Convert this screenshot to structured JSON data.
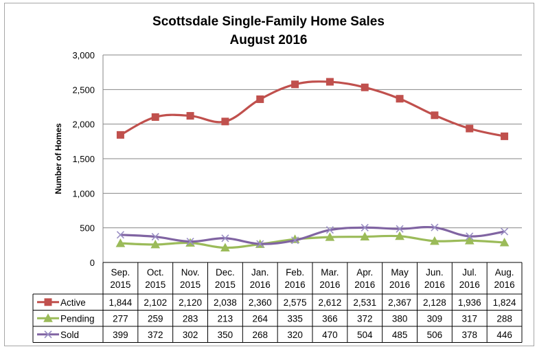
{
  "chart_data": {
    "type": "line",
    "title": [
      "Scottsdale Single-Family Home Sales",
      "August 2016"
    ],
    "ylabel": "Number of Homes",
    "xlabel": "",
    "ylim": [
      0,
      3000
    ],
    "yticks": [
      0,
      500,
      1000,
      1500,
      2000,
      2500,
      3000
    ],
    "ytick_labels": [
      "0",
      "500",
      "1,000",
      "1,500",
      "2,000",
      "2,500",
      "3,000"
    ],
    "grid": "horizontal",
    "legend": "data-table",
    "categories": [
      [
        "Sep.",
        "2015"
      ],
      [
        "Oct.",
        "2015"
      ],
      [
        "Nov.",
        "2015"
      ],
      [
        "Dec.",
        "2015"
      ],
      [
        "Jan.",
        "2016"
      ],
      [
        "Feb.",
        "2016"
      ],
      [
        "Mar.",
        "2016"
      ],
      [
        "Apr.",
        "2016"
      ],
      [
        "May",
        "2016"
      ],
      [
        "Jun.",
        "2016"
      ],
      [
        "Jul.",
        "2016"
      ],
      [
        "Aug.",
        "2016"
      ]
    ],
    "series": [
      {
        "name": "Active",
        "color": "#c0504d",
        "marker": "square",
        "values": [
          1844,
          2102,
          2120,
          2038,
          2360,
          2575,
          2612,
          2531,
          2367,
          2128,
          1936,
          1824
        ],
        "labels": [
          "1,844",
          "2,102",
          "2,120",
          "2,038",
          "2,360",
          "2,575",
          "2,612",
          "2,531",
          "2,367",
          "2,128",
          "1,936",
          "1,824"
        ]
      },
      {
        "name": "Pending",
        "color": "#9bbb59",
        "marker": "triangle",
        "values": [
          277,
          259,
          283,
          213,
          264,
          335,
          366,
          372,
          380,
          309,
          317,
          288
        ],
        "labels": [
          "277",
          "259",
          "283",
          "213",
          "264",
          "335",
          "366",
          "372",
          "380",
          "309",
          "317",
          "288"
        ]
      },
      {
        "name": "Sold",
        "color": "#8064a2",
        "marker": "x",
        "values": [
          399,
          372,
          302,
          350,
          268,
          320,
          470,
          504,
          485,
          506,
          378,
          446
        ],
        "labels": [
          "399",
          "372",
          "302",
          "350",
          "268",
          "320",
          "470",
          "504",
          "485",
          "506",
          "378",
          "446"
        ]
      }
    ]
  }
}
